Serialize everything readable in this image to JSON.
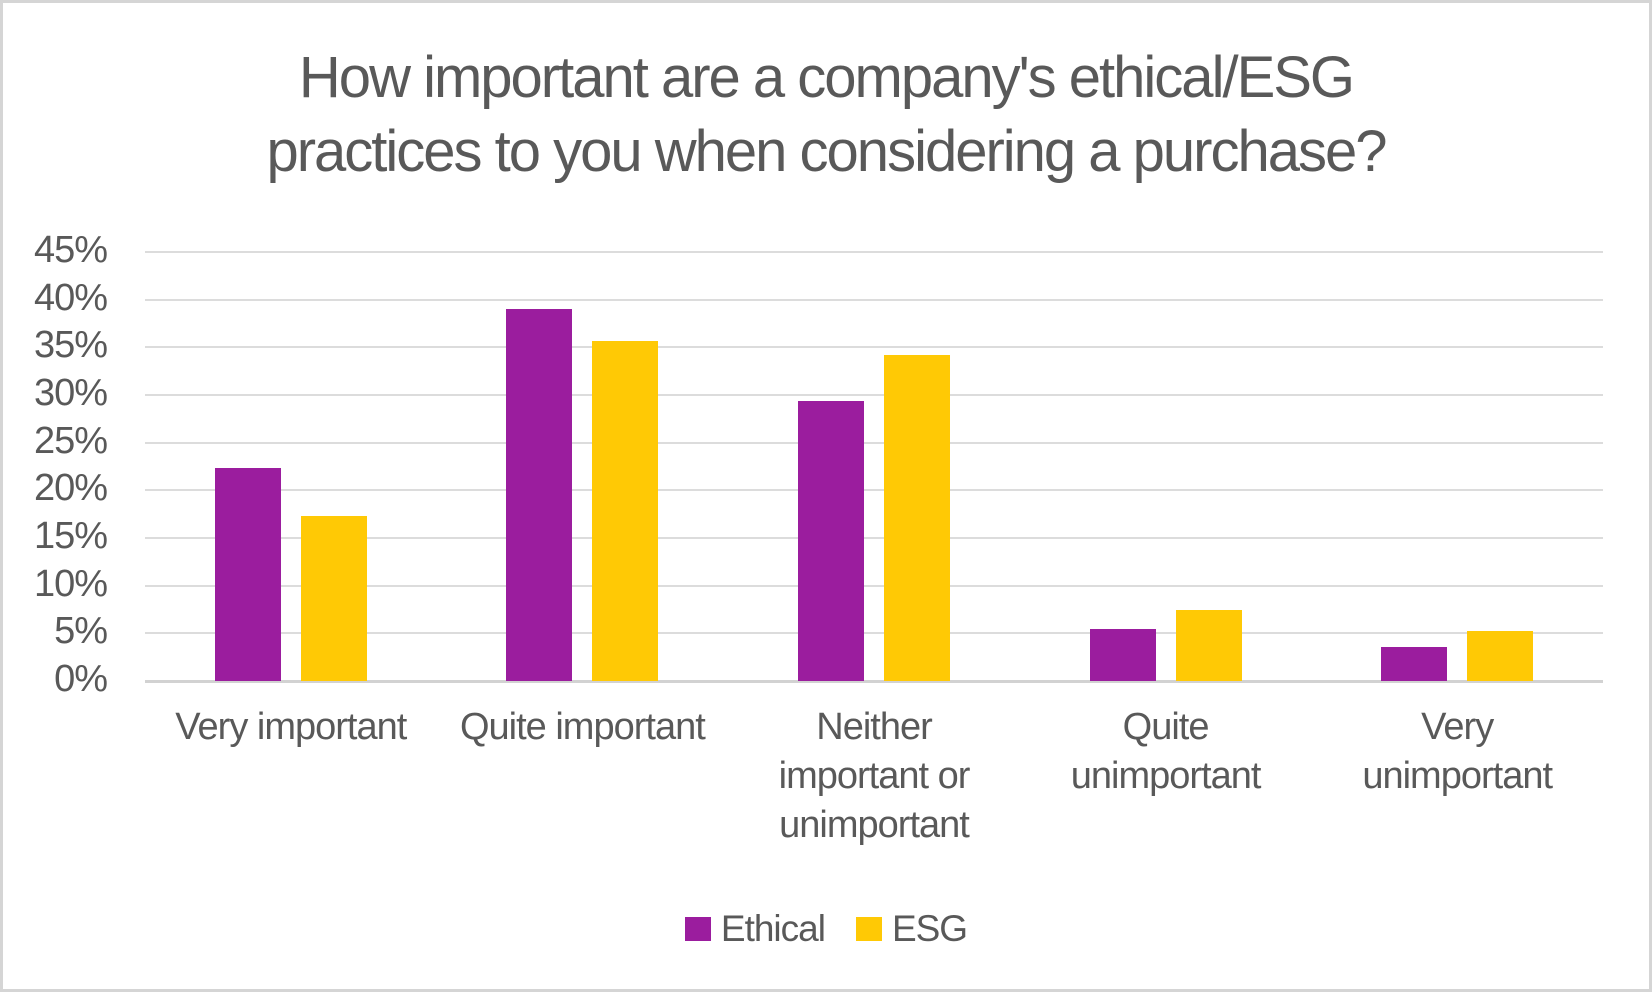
{
  "chart_data": {
    "type": "bar",
    "title": "How important are a company's ethical/ESG\npractices to you when considering a purchase?",
    "categories": [
      "Very important",
      "Quite important",
      "Neither\nimportant or\nunimportant",
      "Quite\nunimportant",
      "Very\nunimportant"
    ],
    "series": [
      {
        "name": "Ethical",
        "color": "#9B1D9E",
        "values": [
          22.3,
          39.0,
          29.4,
          5.5,
          3.6
        ]
      },
      {
        "name": "ESG",
        "color": "#FFC905",
        "values": [
          17.3,
          35.7,
          34.2,
          7.4,
          5.2
        ]
      }
    ],
    "xlabel": "",
    "ylabel": "",
    "ylim": [
      0,
      45
    ],
    "yticks": [
      0,
      5,
      10,
      15,
      20,
      25,
      30,
      35,
      40,
      45
    ],
    "ytick_labels": [
      "0%",
      "5%",
      "10%",
      "15%",
      "20%",
      "25%",
      "30%",
      "35%",
      "40%",
      "45%"
    ],
    "grid": "horizontal",
    "legend_position": "bottom",
    "colors": {
      "text": "#595959",
      "gridline": "#DCDCDC",
      "axis_line": "#D2D2D2",
      "border": "#D5D5D5",
      "background": "#FFFFFF"
    }
  }
}
